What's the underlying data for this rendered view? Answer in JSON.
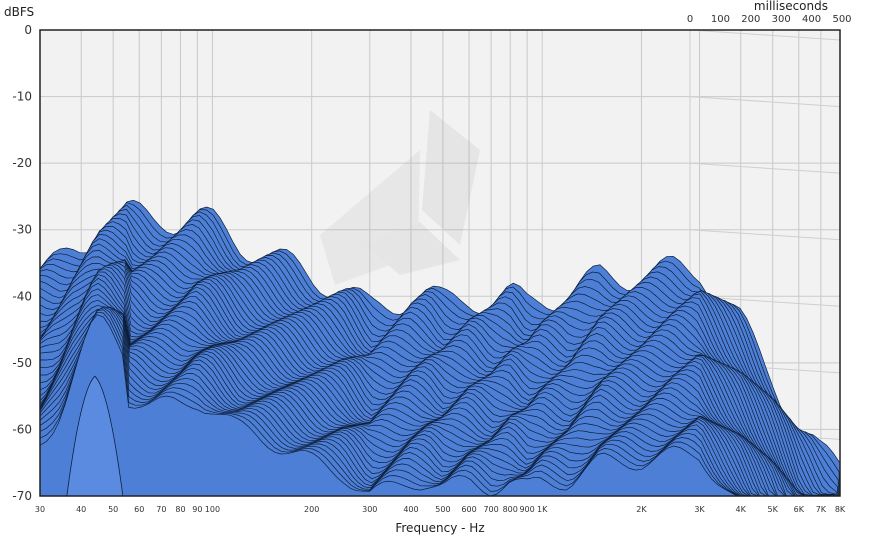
{
  "chart_data": {
    "type": "area",
    "subtype": "waterfall-3d",
    "ylabel": "dBFS",
    "xlabel": "Frequency - Hz",
    "zlabel": "milliseconds",
    "x_scale": "log",
    "xlim": [
      30,
      8000
    ],
    "ylim": [
      -70,
      0
    ],
    "zlim": [
      0,
      500
    ],
    "y_ticks": [
      "0",
      "-10",
      "-20",
      "-30",
      "-40",
      "-50",
      "-60",
      "-70"
    ],
    "y_tick_values": [
      0,
      -10,
      -20,
      -30,
      -40,
      -50,
      -60,
      -70
    ],
    "x_ticks": [
      "30",
      "40",
      "50",
      "60",
      "70",
      "80",
      "90",
      "100",
      "200",
      "300",
      "400",
      "500",
      "600",
      "700",
      "800",
      "900",
      "1K",
      "2K",
      "3K",
      "4K",
      "5K",
      "6K",
      "7K",
      "8K"
    ],
    "x_tick_values": [
      30,
      40,
      50,
      60,
      70,
      80,
      90,
      100,
      200,
      300,
      400,
      500,
      600,
      700,
      800,
      900,
      1000,
      2000,
      3000,
      4000,
      5000,
      6000,
      7000,
      8000
    ],
    "z_ticks": [
      "0",
      "100",
      "200",
      "300",
      "400",
      "500"
    ],
    "z_tick_values": [
      0,
      100,
      200,
      300,
      400,
      500
    ],
    "grid": true,
    "colors": {
      "surface": "#4e7fd6",
      "surface_line": "#0d1f3a",
      "highlight": "#5b8be0",
      "background": "#f2f2f2"
    },
    "series": [
      {
        "values_x": [
          30,
          35,
          40,
          45,
          50,
          55,
          60,
          65,
          70,
          80,
          90,
          100,
          120,
          150,
          200,
          250,
          300,
          350,
          400,
          450,
          500,
          600,
          700,
          800,
          900,
          1000,
          1200,
          1500,
          2000,
          2500,
          3000,
          4000,
          5000,
          6000,
          7000,
          8000
        ],
        "values_db": [
          -36,
          -35,
          -33,
          -30,
          -28.5,
          -27.5,
          -28,
          -28.5,
          -28.5,
          -28.5,
          -28,
          -29,
          -32,
          -34,
          -37,
          -39,
          -42,
          -41,
          -40,
          -40,
          -41,
          -40,
          -41,
          -40,
          -41,
          -40,
          -40,
          -37,
          -37,
          -36,
          -36,
          -44,
          -52,
          -60,
          -64,
          -65
        ]
      }
    ]
  }
}
